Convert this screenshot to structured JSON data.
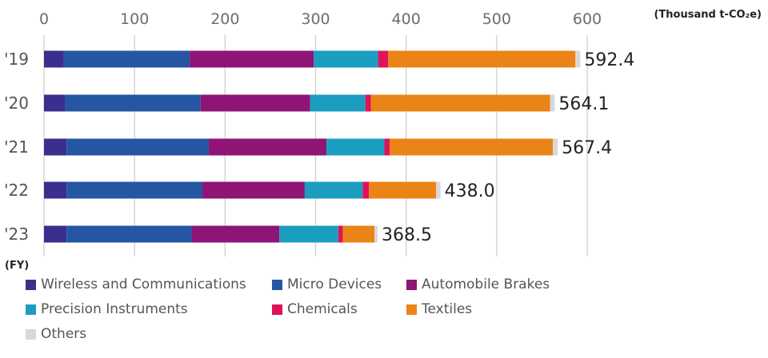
{
  "chart_data": {
    "type": "bar",
    "orientation": "horizontal",
    "stacked": true,
    "categories": [
      "'19",
      "'20",
      "'21",
      "'22",
      "'23"
    ],
    "series": [
      {
        "name": "Wireless and Communications",
        "color": "#3a2f8c",
        "values": [
          22,
          23,
          25,
          25,
          25
        ]
      },
      {
        "name": "Micro Devices",
        "color": "#2456a4",
        "values": [
          139,
          150,
          157,
          150,
          138
        ]
      },
      {
        "name": "Automobile Brakes",
        "color": "#8e1475",
        "values": [
          137,
          121,
          130,
          113,
          97
        ]
      },
      {
        "name": "Precision Instruments",
        "color": "#1b9dc0",
        "values": [
          71,
          61,
          64,
          64,
          65
        ]
      },
      {
        "name": "Chemicals",
        "color": "#e0125b",
        "values": [
          11,
          6,
          6,
          7,
          5
        ]
      },
      {
        "name": "Textiles",
        "color": "#eb8416",
        "values": [
          207,
          198,
          180,
          74,
          35
        ]
      },
      {
        "name": "Others",
        "color": "#d9d9d9",
        "values": [
          5.4,
          5.1,
          5.4,
          5.0,
          3.5
        ]
      }
    ],
    "totals": [
      "592.4",
      "564.1",
      "567.4",
      "438.0",
      "368.5"
    ],
    "xlim": [
      0,
      600
    ],
    "xticks": [
      "0",
      "100",
      "200",
      "300",
      "400",
      "500",
      "600"
    ],
    "unit": "(Thousand t-CO₂e)",
    "category_axis_label": "(FY)",
    "grid": true,
    "legend_position": "bottom"
  }
}
